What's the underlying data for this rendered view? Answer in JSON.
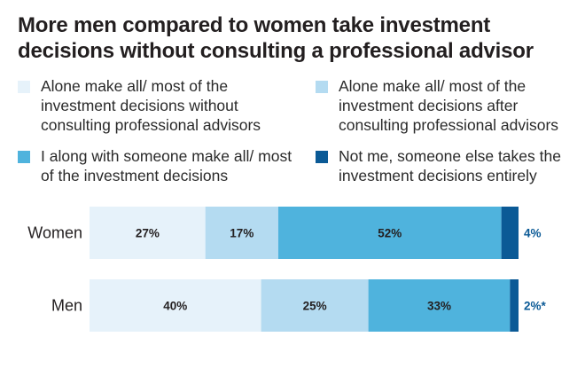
{
  "chart_data": {
    "type": "bar",
    "orientation": "horizontal",
    "stacked": true,
    "title": "More men compared to women take investment decisions without consulting a professional advisor",
    "categories": [
      "Women",
      "Men"
    ],
    "series": [
      {
        "name": "Alone make all/ most of the investment decisions without consulting professional advisors",
        "values": [
          27,
          40
        ],
        "labels": [
          "27%",
          "40%"
        ],
        "color": "#e6f2fa"
      },
      {
        "name": "Alone make all/ most of the investment decisions after consulting professional advisors",
        "values": [
          17,
          25
        ],
        "labels": [
          "17%",
          "25%"
        ],
        "color": "#b4dbf1"
      },
      {
        "name": "I along with someone make all/ most of the investment decisions",
        "values": [
          52,
          33
        ],
        "labels": [
          "52%",
          "33%"
        ],
        "color": "#4fb3dd"
      },
      {
        "name": "Not me, someone else takes the investment decisions entirely",
        "values": [
          4,
          2
        ],
        "labels": [
          "4%",
          "2%*"
        ],
        "color": "#0b5a96"
      }
    ],
    "xlim": [
      0,
      100
    ],
    "grid": false,
    "legend_position": "top"
  }
}
